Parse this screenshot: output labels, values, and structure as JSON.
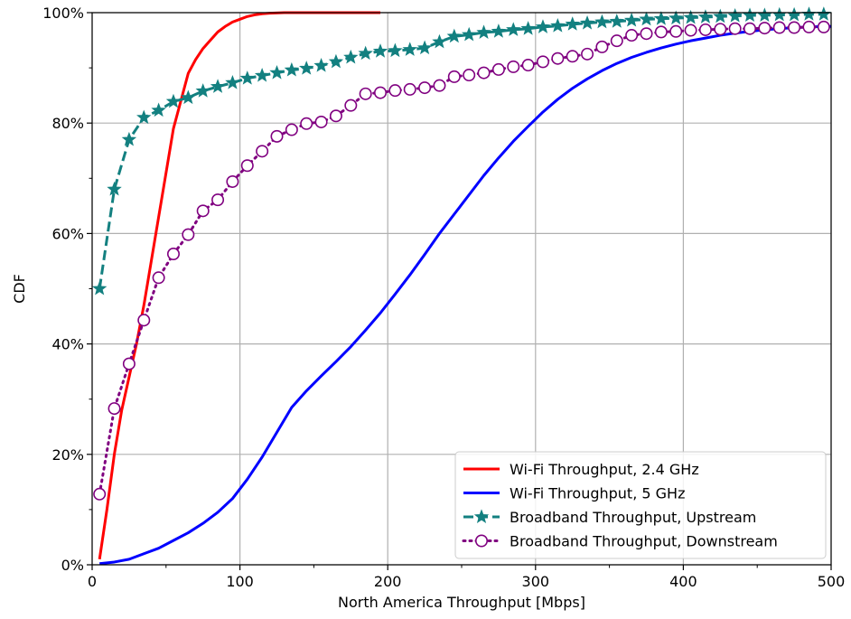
{
  "chart_data": {
    "type": "line",
    "title": "",
    "xlabel": "North America Throughput [Mbps]",
    "ylabel": "CDF",
    "xlim": [
      0,
      500
    ],
    "ylim": [
      0,
      100
    ],
    "x_ticks": [
      0,
      100,
      200,
      300,
      400,
      500
    ],
    "y_ticks": [
      0,
      20,
      40,
      60,
      80,
      100
    ],
    "y_tick_labels": [
      "0%",
      "20%",
      "40%",
      "60%",
      "80%",
      "100%"
    ],
    "grid": true,
    "legend_position": "bottom-right",
    "series": [
      {
        "name": "Wi-Fi Throughput, 2.4 GHz",
        "color": "#ff0000",
        "line_style": "solid",
        "marker": "none",
        "x": [
          5,
          10,
          15,
          20,
          25,
          30,
          35,
          40,
          45,
          50,
          55,
          60,
          65,
          70,
          75,
          80,
          85,
          90,
          95,
          100,
          105,
          110,
          115,
          120,
          130,
          140,
          160,
          180,
          195
        ],
        "y": [
          1,
          10,
          20,
          28,
          34,
          40,
          47,
          55,
          63,
          71,
          79,
          84,
          89,
          91.5,
          93.5,
          95,
          96.5,
          97.5,
          98.3,
          98.8,
          99.3,
          99.6,
          99.8,
          99.9,
          100,
          100,
          100,
          100,
          100
        ]
      },
      {
        "name": "Wi-Fi Throughput, 5 GHz",
        "color": "#0000ff",
        "line_style": "solid",
        "marker": "none",
        "x": [
          5,
          15,
          25,
          35,
          45,
          55,
          65,
          75,
          85,
          95,
          105,
          115,
          125,
          135,
          145,
          155,
          165,
          175,
          185,
          195,
          205,
          215,
          225,
          235,
          245,
          255,
          265,
          275,
          285,
          295,
          305,
          315,
          325,
          335,
          345,
          355,
          365,
          375,
          385,
          395,
          405,
          415,
          425,
          435,
          445,
          455,
          465,
          475,
          485,
          495,
          500
        ],
        "y": [
          0.2,
          0.5,
          1,
          2,
          3,
          4.4,
          5.8,
          7.5,
          9.5,
          12,
          15.5,
          19.5,
          24,
          28.5,
          31.5,
          34.2,
          36.8,
          39.5,
          42.5,
          45.6,
          49,
          52.5,
          56.2,
          60,
          63.5,
          67,
          70.5,
          73.7,
          76.7,
          79.4,
          82,
          84.3,
          86.3,
          88,
          89.5,
          90.8,
          91.9,
          92.8,
          93.6,
          94.3,
          94.9,
          95.4,
          95.9,
          96.3,
          96.6,
          96.9,
          97.1,
          97.3,
          97.4,
          97.5,
          97.5
        ]
      },
      {
        "name": "Broadband Throughput, Upstream",
        "color": "#138080",
        "line_style": "dashed",
        "marker": "star",
        "x": [
          5,
          15,
          25,
          35,
          45,
          55,
          65,
          75,
          85,
          95,
          105,
          115,
          125,
          135,
          145,
          155,
          165,
          175,
          185,
          195,
          205,
          215,
          225,
          235,
          245,
          255,
          265,
          275,
          285,
          295,
          305,
          315,
          325,
          335,
          345,
          355,
          365,
          375,
          385,
          395,
          405,
          415,
          425,
          435,
          445,
          455,
          465,
          475,
          485,
          495
        ],
        "y": [
          50,
          68,
          77,
          81,
          82.3,
          83.9,
          84.6,
          85.8,
          86.6,
          87.3,
          88.1,
          88.6,
          89.1,
          89.6,
          89.9,
          90.4,
          91.1,
          91.9,
          92.6,
          93,
          93.1,
          93.3,
          93.6,
          94.7,
          95.7,
          96,
          96.4,
          96.6,
          96.9,
          97.1,
          97.4,
          97.6,
          97.9,
          98.1,
          98.3,
          98.4,
          98.6,
          98.8,
          98.9,
          99,
          99.1,
          99.2,
          99.3,
          99.4,
          99.5,
          99.5,
          99.6,
          99.6,
          99.7,
          99.7
        ]
      },
      {
        "name": "Broadband Throughput, Downstream",
        "color": "#800080",
        "line_style": "dotted",
        "marker": "circle-open",
        "x": [
          5,
          15,
          25,
          35,
          45,
          55,
          65,
          75,
          85,
          95,
          105,
          115,
          125,
          135,
          145,
          155,
          165,
          175,
          185,
          195,
          205,
          215,
          225,
          235,
          245,
          255,
          265,
          275,
          285,
          295,
          305,
          315,
          325,
          335,
          345,
          355,
          365,
          375,
          385,
          395,
          405,
          415,
          425,
          435,
          445,
          455,
          465,
          475,
          485,
          495
        ],
        "y": [
          12.8,
          28.3,
          36.4,
          44.3,
          52,
          56.3,
          59.8,
          64.1,
          66.1,
          69.4,
          72.3,
          74.9,
          77.6,
          78.8,
          79.9,
          80.2,
          81.3,
          83.2,
          85.3,
          85.5,
          85.9,
          86.1,
          86.4,
          86.8,
          88.4,
          88.7,
          89.1,
          89.7,
          90.2,
          90.5,
          91.1,
          91.7,
          92.1,
          92.5,
          93.8,
          94.9,
          95.9,
          96.2,
          96.5,
          96.6,
          96.8,
          96.9,
          97,
          97.1,
          97.1,
          97.2,
          97.3,
          97.3,
          97.4,
          97.4
        ]
      }
    ]
  }
}
